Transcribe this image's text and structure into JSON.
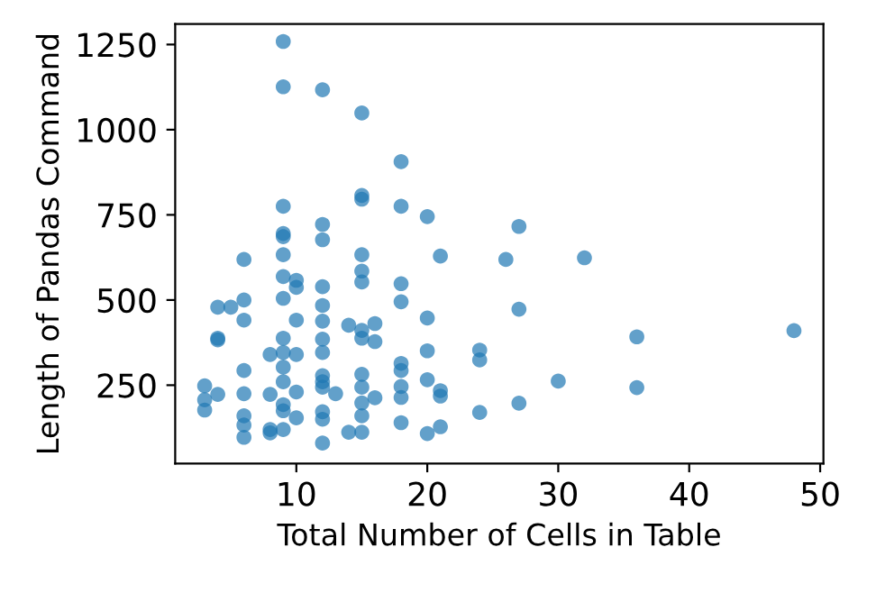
{
  "chart_data": {
    "type": "scatter",
    "xlabel": "Total Number of Cells in Table",
    "ylabel": "Length of Pandas Command",
    "xlim": [
      0.75,
      50.25
    ],
    "xticks": [
      10,
      20,
      30,
      40,
      50
    ],
    "ylim": [
      20,
      1310
    ],
    "yticks": [
      250,
      500,
      750,
      1000,
      1250
    ],
    "grid": false,
    "legend": false,
    "marker": "circle",
    "series": [
      {
        "color": "#1f77b4",
        "x": [
          3,
          3,
          3,
          4,
          4,
          4,
          4,
          5,
          6,
          6,
          6,
          6,
          6,
          6,
          6,
          6,
          8,
          8,
          8,
          8,
          9,
          9,
          9,
          9,
          9,
          9,
          9,
          9,
          9,
          9,
          9,
          9,
          9,
          9,
          9,
          10,
          10,
          10,
          10,
          10,
          10,
          12,
          12,
          12,
          12,
          12,
          12,
          12,
          12,
          12,
          12,
          12,
          12,
          12,
          12,
          13,
          14,
          14,
          15,
          15,
          15,
          15,
          15,
          15,
          15,
          15,
          15,
          15,
          15,
          15,
          15,
          16,
          16,
          16,
          18,
          18,
          18,
          18,
          18,
          18,
          18,
          18,
          18,
          20,
          20,
          20,
          20,
          20,
          21,
          21,
          21,
          21,
          24,
          24,
          24,
          26,
          27,
          27,
          27,
          30,
          32,
          36,
          36,
          48
        ],
        "values": [
          248,
          207,
          177,
          383,
          388,
          479,
          223,
          479,
          619,
          500,
          441,
          293,
          225,
          160,
          133,
          97,
          340,
          223,
          120,
          110,
          1259,
          1126,
          775,
          695,
          633,
          569,
          505,
          388,
          346,
          303,
          260,
          193,
          175,
          686,
          120,
          558,
          537,
          441,
          340,
          230,
          154,
          1117,
          722,
          677,
          539,
          484,
          438,
          385,
          346,
          278,
          260,
          244,
          172,
          150,
          80,
          225,
          426,
          112,
          1049,
          807,
          796,
          633,
          585,
          553,
          411,
          388,
          282,
          244,
          198,
          160,
          112,
          431,
          378,
          213,
          906,
          775,
          548,
          495,
          314,
          293,
          246,
          214,
          140,
          745,
          447,
          351,
          266,
          108,
          629,
          234,
          218,
          128,
          353,
          324,
          170,
          619,
          716,
          473,
          197,
          262,
          624,
          392,
          243,
          410
        ]
      }
    ]
  }
}
